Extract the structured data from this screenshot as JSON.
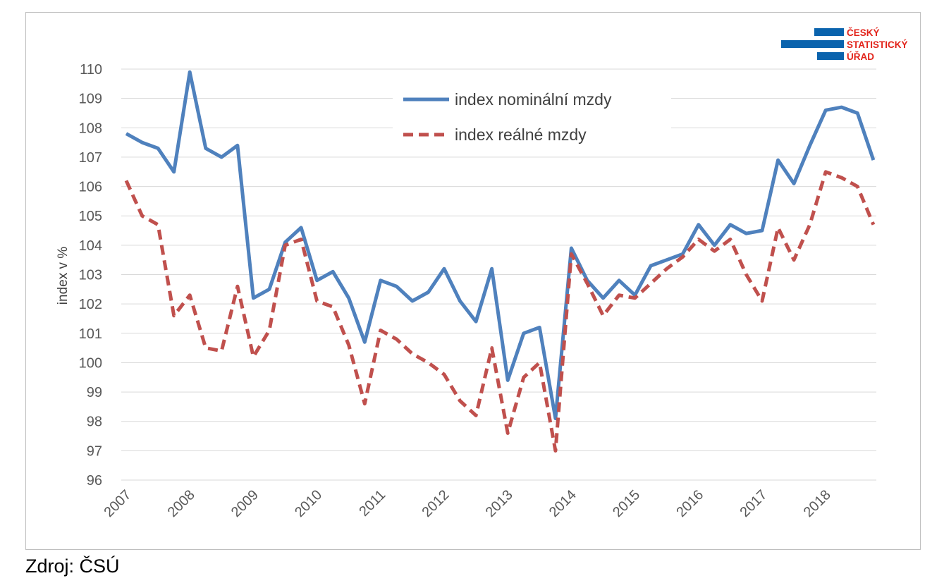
{
  "source_note": "Zdroj: ČSÚ",
  "logo": {
    "line1": "ČESKÝ",
    "line2": "STATISTICKÝ",
    "line3": "ÚŘAD",
    "bar_color": "#0a63ad",
    "text_color": "#e2231a"
  },
  "chart_data": {
    "type": "line",
    "ylabel": "index v %",
    "ylim": [
      96,
      110
    ],
    "yticks": [
      "96",
      "97",
      "98",
      "99",
      "100",
      "101",
      "102",
      "103",
      "104",
      "105",
      "106",
      "107",
      "108",
      "109",
      "110"
    ],
    "xticks": [
      "2007",
      "2008",
      "2009",
      "2010",
      "2011",
      "2012",
      "2013",
      "2014",
      "2015",
      "2016",
      "2017",
      "2018"
    ],
    "x_unit": "quarter",
    "grid": "horizontal",
    "legend_position": "top-center",
    "series": [
      {
        "name": "index nominální mzdy",
        "color": "#4f81bd",
        "style": "solid",
        "values": [
          107.8,
          107.5,
          107.3,
          106.5,
          109.9,
          107.3,
          107.0,
          107.4,
          102.2,
          102.5,
          104.1,
          104.6,
          102.8,
          103.1,
          102.2,
          100.7,
          102.8,
          102.6,
          102.1,
          102.4,
          103.2,
          102.1,
          101.4,
          103.2,
          99.4,
          101.0,
          101.2,
          98.1,
          103.9,
          102.8,
          102.2,
          102.8,
          102.3,
          103.3,
          103.5,
          103.7,
          104.7,
          104.0,
          104.7,
          104.4,
          104.5,
          106.9,
          106.1,
          107.4,
          108.6,
          108.7,
          108.5,
          106.9
        ]
      },
      {
        "name": "index reálné mzdy",
        "color": "#c0504d",
        "style": "dashed",
        "values": [
          106.2,
          105.0,
          104.7,
          101.6,
          102.3,
          100.5,
          100.4,
          102.6,
          100.2,
          101.1,
          104.0,
          104.2,
          102.1,
          101.9,
          100.6,
          98.6,
          101.1,
          100.8,
          100.3,
          100.0,
          99.6,
          98.7,
          98.2,
          100.5,
          97.6,
          99.5,
          100.0,
          97.0,
          103.7,
          102.7,
          101.6,
          102.3,
          102.2,
          102.7,
          103.2,
          103.6,
          104.2,
          103.8,
          104.2,
          103.0,
          102.1,
          104.6,
          103.5,
          104.7,
          106.5,
          106.3,
          106.0,
          104.7
        ]
      }
    ]
  }
}
